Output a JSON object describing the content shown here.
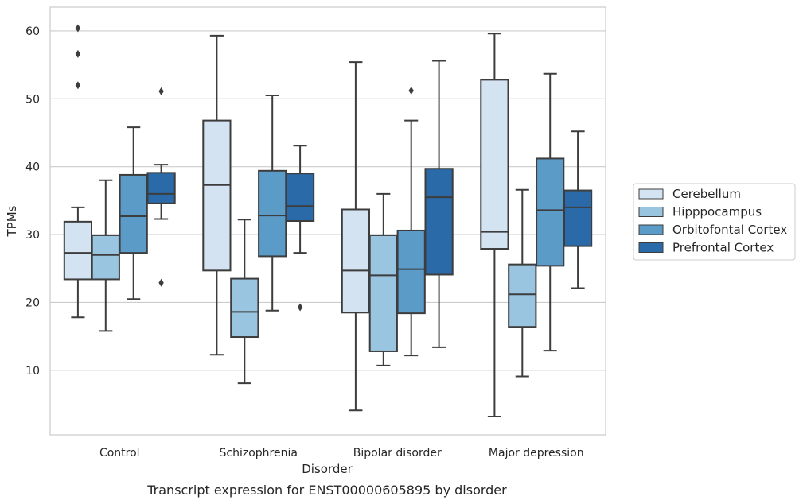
{
  "chart_data": {
    "type": "box",
    "caption": "Transcript expression for ENST00000605895 by disorder",
    "xlabel": "Disorder",
    "ylabel": "TPMs",
    "ylim": [
      0.5,
      63.5
    ],
    "yticks": [
      10,
      20,
      30,
      40,
      50,
      60
    ],
    "grid": "horizontal",
    "legend_position": "right",
    "categories": [
      "Control",
      "Schizophrenia",
      "Bipolar disorder",
      "Major depression"
    ],
    "series": [
      {
        "name": "Cerebellum",
        "color": "#d4e3f2",
        "boxes": [
          {
            "whisker_low": 17.8,
            "q1": 23.4,
            "median": 27.3,
            "q3": 31.9,
            "whisker_high": 34.0,
            "outliers": [
              52.0,
              56.6,
              60.4
            ]
          },
          {
            "whisker_low": 12.3,
            "q1": 24.7,
            "median": 37.3,
            "q3": 46.8,
            "whisker_high": 59.3,
            "outliers": []
          },
          {
            "whisker_low": 4.1,
            "q1": 18.5,
            "median": 24.7,
            "q3": 33.7,
            "whisker_high": 55.4,
            "outliers": []
          },
          {
            "whisker_low": 3.2,
            "q1": 27.9,
            "median": 30.4,
            "q3": 52.8,
            "whisker_high": 59.6,
            "outliers": []
          }
        ]
      },
      {
        "name": "Hipppocampus",
        "color": "#9ac5e0",
        "boxes": [
          {
            "whisker_low": 15.8,
            "q1": 23.4,
            "median": 27.0,
            "q3": 29.9,
            "whisker_high": 38.0,
            "outliers": []
          },
          {
            "whisker_low": 8.1,
            "q1": 14.9,
            "median": 18.6,
            "q3": 23.5,
            "whisker_high": 32.2,
            "outliers": []
          },
          {
            "whisker_low": 10.7,
            "q1": 12.8,
            "median": 24.0,
            "q3": 29.9,
            "whisker_high": 36.0,
            "outliers": []
          },
          {
            "whisker_low": 9.1,
            "q1": 16.4,
            "median": 21.2,
            "q3": 25.6,
            "whisker_high": 36.6,
            "outliers": []
          }
        ]
      },
      {
        "name": "Orbitofontal Cortex",
        "color": "#5b9bc8",
        "boxes": [
          {
            "whisker_low": 20.5,
            "q1": 27.3,
            "median": 32.7,
            "q3": 38.8,
            "whisker_high": 45.8,
            "outliers": []
          },
          {
            "whisker_low": 18.8,
            "q1": 26.8,
            "median": 32.8,
            "q3": 39.4,
            "whisker_high": 50.5,
            "outliers": []
          },
          {
            "whisker_low": 12.2,
            "q1": 18.4,
            "median": 24.9,
            "q3": 30.6,
            "whisker_high": 46.8,
            "outliers": [
              51.2
            ]
          },
          {
            "whisker_low": 12.9,
            "q1": 25.4,
            "median": 33.6,
            "q3": 41.2,
            "whisker_high": 53.7,
            "outliers": []
          }
        ]
      },
      {
        "name": "Prefrontal Cortex",
        "color": "#2a6aa8",
        "boxes": [
          {
            "whisker_low": 32.3,
            "q1": 34.6,
            "median": 36.0,
            "q3": 39.1,
            "whisker_high": 40.3,
            "outliers": [
              22.9,
              51.1
            ]
          },
          {
            "whisker_low": 27.3,
            "q1": 32.0,
            "median": 34.2,
            "q3": 39.0,
            "whisker_high": 43.1,
            "outliers": [
              19.3
            ]
          },
          {
            "whisker_low": 13.4,
            "q1": 24.1,
            "median": 35.5,
            "q3": 39.7,
            "whisker_high": 55.6,
            "outliers": []
          },
          {
            "whisker_low": 22.1,
            "q1": 28.3,
            "median": 34.0,
            "q3": 36.5,
            "whisker_high": 45.2,
            "outliers": []
          }
        ]
      }
    ]
  }
}
